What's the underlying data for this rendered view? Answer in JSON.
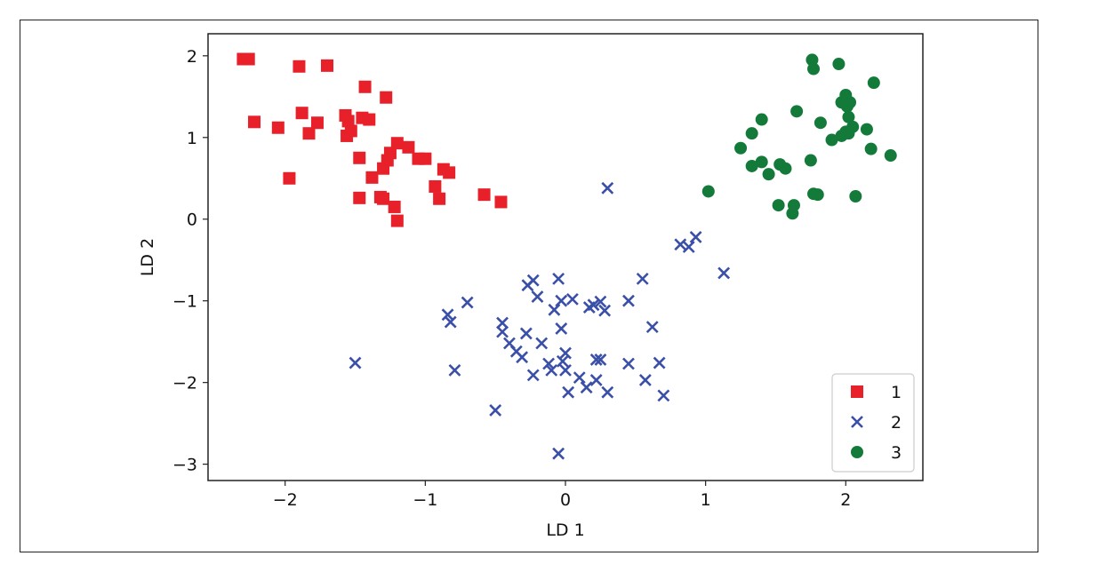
{
  "chart_data": {
    "type": "scatter",
    "xlabel": "LD 1",
    "ylabel": "LD 2",
    "xlim": [
      -2.55,
      2.55
    ],
    "ylim": [
      -3.2,
      2.27
    ],
    "xticks": [
      -2,
      -1,
      0,
      1,
      2
    ],
    "xtick_labels": [
      "−2",
      "−1",
      "0",
      "1",
      "2"
    ],
    "yticks": [
      -3,
      -2,
      -1,
      0,
      1,
      2
    ],
    "ytick_labels": [
      "−3",
      "−2",
      "−1",
      "0",
      "1",
      "2"
    ],
    "grid": false,
    "legend_position": "lower-right",
    "series": [
      {
        "name": "1",
        "marker": "square",
        "color": "#e8202a",
        "points": [
          [
            -2.3,
            1.96
          ],
          [
            -2.26,
            1.96
          ],
          [
            -2.22,
            1.19
          ],
          [
            -2.05,
            1.12
          ],
          [
            -1.97,
            0.5
          ],
          [
            -1.9,
            1.87
          ],
          [
            -1.88,
            1.3
          ],
          [
            -1.83,
            1.05
          ],
          [
            -1.77,
            1.18
          ],
          [
            -1.7,
            1.88
          ],
          [
            -1.57,
            1.27
          ],
          [
            -1.55,
            1.2
          ],
          [
            -1.56,
            1.02
          ],
          [
            -1.53,
            1.08
          ],
          [
            -1.47,
            0.75
          ],
          [
            -1.47,
            0.26
          ],
          [
            -1.45,
            1.24
          ],
          [
            -1.43,
            1.62
          ],
          [
            -1.4,
            1.22
          ],
          [
            -1.38,
            0.51
          ],
          [
            -1.32,
            0.27
          ],
          [
            -1.3,
            0.25
          ],
          [
            -1.3,
            0.62
          ],
          [
            -1.27,
            0.72
          ],
          [
            -1.25,
            0.81
          ],
          [
            -1.22,
            0.15
          ],
          [
            -1.2,
            0.93
          ],
          [
            -1.2,
            -0.02
          ],
          [
            -1.12,
            0.88
          ],
          [
            -1.05,
            0.74
          ],
          [
            -1.0,
            0.74
          ],
          [
            -0.93,
            0.4
          ],
          [
            -0.9,
            0.25
          ],
          [
            -0.87,
            0.61
          ],
          [
            -0.83,
            0.57
          ],
          [
            -0.58,
            0.3
          ],
          [
            -0.46,
            0.21
          ],
          [
            -1.28,
            1.49
          ]
        ]
      },
      {
        "name": "2",
        "marker": "x",
        "color": "#3a4fa8",
        "points": [
          [
            -1.5,
            -1.76
          ],
          [
            -0.84,
            -1.17
          ],
          [
            -0.82,
            -1.26
          ],
          [
            -0.79,
            -1.85
          ],
          [
            -0.7,
            -1.02
          ],
          [
            -0.5,
            -2.34
          ],
          [
            -0.45,
            -1.27
          ],
          [
            -0.45,
            -1.38
          ],
          [
            -0.4,
            -1.52
          ],
          [
            -0.35,
            -1.62
          ],
          [
            -0.31,
            -1.69
          ],
          [
            -0.28,
            -1.4
          ],
          [
            -0.27,
            -0.81
          ],
          [
            -0.23,
            -0.75
          ],
          [
            -0.23,
            -1.91
          ],
          [
            -0.2,
            -0.95
          ],
          [
            -0.17,
            -1.52
          ],
          [
            -0.12,
            -1.77
          ],
          [
            -0.1,
            -1.85
          ],
          [
            -0.08,
            -1.11
          ],
          [
            -0.05,
            -0.73
          ],
          [
            -0.03,
            -1.34
          ],
          [
            -0.03,
            -1.0
          ],
          [
            -0.02,
            -1.74
          ],
          [
            0.0,
            -1.64
          ],
          [
            0.0,
            -1.85
          ],
          [
            0.02,
            -2.12
          ],
          [
            0.05,
            -0.98
          ],
          [
            0.1,
            -1.94
          ],
          [
            0.15,
            -2.06
          ],
          [
            0.17,
            -1.08
          ],
          [
            0.2,
            -1.05
          ],
          [
            0.22,
            -1.72
          ],
          [
            0.22,
            -1.97
          ],
          [
            0.25,
            -1.72
          ],
          [
            0.25,
            -1.01
          ],
          [
            0.28,
            -1.12
          ],
          [
            0.3,
            -2.12
          ],
          [
            0.3,
            0.38
          ],
          [
            0.45,
            -1.0
          ],
          [
            0.45,
            -1.77
          ],
          [
            0.55,
            -0.73
          ],
          [
            0.57,
            -1.97
          ],
          [
            0.62,
            -1.32
          ],
          [
            0.67,
            -1.76
          ],
          [
            0.7,
            -2.16
          ],
          [
            0.82,
            -0.31
          ],
          [
            0.88,
            -0.34
          ],
          [
            0.93,
            -0.22
          ],
          [
            1.13,
            -0.66
          ],
          [
            -0.05,
            -2.87
          ]
        ]
      },
      {
        "name": "3",
        "marker": "circle",
        "color": "#137a3a",
        "points": [
          [
            1.02,
            0.34
          ],
          [
            1.25,
            0.87
          ],
          [
            1.33,
            1.05
          ],
          [
            1.33,
            0.65
          ],
          [
            1.4,
            1.22
          ],
          [
            1.4,
            0.7
          ],
          [
            1.45,
            0.55
          ],
          [
            1.52,
            0.17
          ],
          [
            1.53,
            0.67
          ],
          [
            1.57,
            0.62
          ],
          [
            1.62,
            0.07
          ],
          [
            1.63,
            0.17
          ],
          [
            1.65,
            1.32
          ],
          [
            1.75,
            0.72
          ],
          [
            1.76,
            1.95
          ],
          [
            1.77,
            0.31
          ],
          [
            1.77,
            1.84
          ],
          [
            1.8,
            0.3
          ],
          [
            1.82,
            1.18
          ],
          [
            1.9,
            0.97
          ],
          [
            1.95,
            1.9
          ],
          [
            1.97,
            1.43
          ],
          [
            1.97,
            1.02
          ],
          [
            2.0,
            1.52
          ],
          [
            2.01,
            1.38
          ],
          [
            2.02,
            1.25
          ],
          [
            2.02,
            1.05
          ],
          [
            2.05,
            1.13
          ],
          [
            2.07,
            0.28
          ],
          [
            2.15,
            1.1
          ],
          [
            2.18,
            0.86
          ],
          [
            2.2,
            1.67
          ],
          [
            2.32,
            0.78
          ],
          [
            2.03,
            1.43
          ],
          [
            2.0,
            1.07
          ]
        ]
      }
    ]
  }
}
